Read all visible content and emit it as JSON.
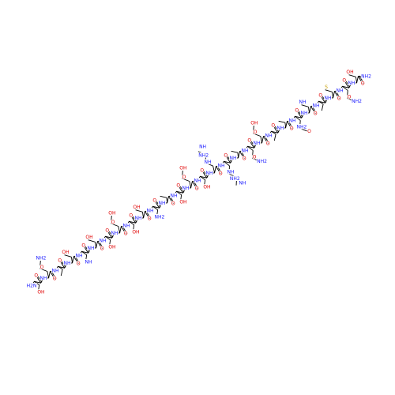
{
  "residues": [
    {
      "amide": "H2N",
      "carbonyl": "O",
      "side": [
        "OH"
      ]
    },
    {
      "amide": "NH",
      "carbonyl": "O",
      "side": [
        "O",
        "NH2"
      ]
    },
    {
      "amide": "NH",
      "carbonyl": "O",
      "side": []
    },
    {
      "amide": "NH",
      "carbonyl": "O",
      "side": [
        "OH"
      ]
    },
    {
      "amide": "NH",
      "carbonyl": "O",
      "side": [
        "NH"
      ]
    },
    {
      "amide": "NH",
      "carbonyl": "O",
      "side": [
        "OH"
      ]
    },
    {
      "amide": "NH",
      "carbonyl": "O",
      "side": [
        "OH"
      ]
    },
    {
      "amide": "NH",
      "carbonyl": "O",
      "side": [
        "O",
        "OH"
      ]
    },
    {
      "amide": "NH",
      "carbonyl": "O",
      "side": [
        "OH"
      ]
    },
    {
      "amide": "NH",
      "carbonyl": "O",
      "side": [
        "OH"
      ]
    },
    {
      "amide": "NH",
      "carbonyl": "O",
      "side": [
        "NH2"
      ]
    },
    {
      "amide": "NH",
      "carbonyl": "O",
      "side": []
    },
    {
      "amide": "NH",
      "carbonyl": "O",
      "side": [
        "OH"
      ]
    },
    {
      "amide": "NH",
      "carbonyl": "O",
      "side": [
        "O",
        "OH"
      ]
    },
    {
      "amide": "NH",
      "carbonyl": "O",
      "side": [
        "OH"
      ]
    },
    {
      "amide": "NH",
      "carbonyl": "O",
      "side": [
        "NH",
        "NH2",
        "NH"
      ]
    },
    {
      "amide": "NH",
      "carbonyl": "O",
      "side": [
        "NH",
        "NH2",
        "NH"
      ]
    },
    {
      "amide": "NH",
      "carbonyl": "O",
      "side": []
    },
    {
      "amide": "NH",
      "carbonyl": "O",
      "side": [
        "O",
        "NH2"
      ]
    },
    {
      "amide": "NH",
      "carbonyl": "O",
      "side": [
        "O",
        "OH"
      ]
    },
    {
      "amide": "NH",
      "carbonyl": "O",
      "side": []
    },
    {
      "amide": "NH",
      "carbonyl": "O",
      "side": []
    },
    {
      "amide": "NH",
      "carbonyl": "O",
      "side": [
        "NH2",
        "O"
      ]
    },
    {
      "amide": "NH",
      "carbonyl": "O",
      "side": [
        "NH"
      ]
    },
    {
      "amide": "NH",
      "carbonyl": "O",
      "side": []
    },
    {
      "amide": "NH",
      "carbonyl": "O",
      "side": [
        "S"
      ]
    },
    {
      "amide": "NH",
      "carbonyl": "O",
      "side": [
        "O",
        "NH2"
      ]
    },
    {
      "amide": "NH",
      "carbonyl": "O",
      "side": [
        "OH"
      ]
    }
  ],
  "c_terminus": "NH2"
}
